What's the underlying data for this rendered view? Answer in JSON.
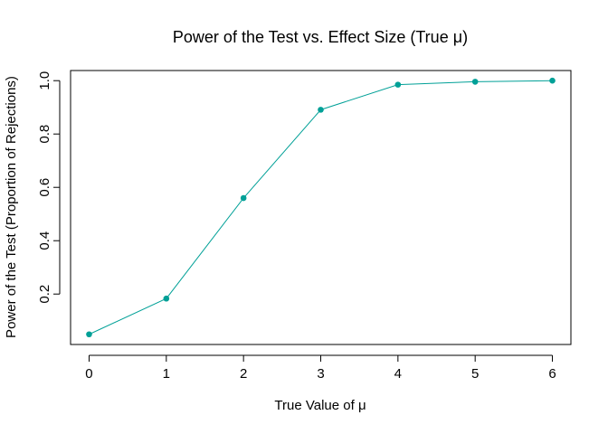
{
  "chart_data": {
    "type": "line",
    "title": "Power of the Test vs. Effect Size (True μ)",
    "xlabel": "True Value of μ",
    "ylabel": "Power of the Test (Proportion of Rejections)",
    "x": [
      0,
      1,
      2,
      3,
      4,
      5,
      6
    ],
    "series": [
      {
        "values": [
          0.049,
          0.183,
          0.56,
          0.891,
          0.985,
          0.996,
          1.0
        ]
      }
    ],
    "xticks": [
      "0",
      "1",
      "2",
      "3",
      "4",
      "5",
      "6"
    ],
    "yticks": [
      "0.2",
      "0.4",
      "0.6",
      "0.8",
      "1.0"
    ],
    "ytick_values": [
      0.2,
      0.4,
      0.6,
      0.8,
      1.0
    ],
    "xlim": [
      -0.24,
      6.24
    ],
    "ylim": [
      0.0109,
      1.038
    ],
    "grid": false,
    "legend": "none",
    "colors": {
      "series": "#00A097",
      "axis": "#000000"
    }
  }
}
